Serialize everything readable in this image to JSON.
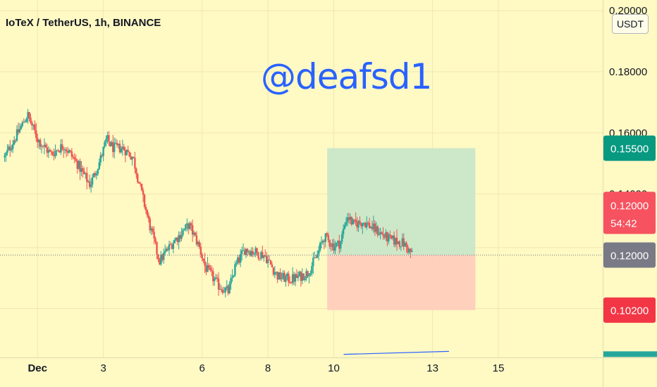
{
  "header": {
    "title": "IoTeX / TetherUS, 1h, BINANCE",
    "watermark": "@deafsd1",
    "unit": "USDT"
  },
  "colors": {
    "background": "#fff9c4",
    "up": "#26a69a",
    "down": "#ef5350",
    "profit_zone": "#c8e6c9",
    "loss_zone": "#ffccbc",
    "target_label": "#089981",
    "stop_label": "#f23645",
    "current_label": "#787b86",
    "timer_label": "#f7525f"
  },
  "chart_data": {
    "type": "candlestick",
    "title": "IoTeX / TetherUS, 1h, BINANCE",
    "y_axis": {
      "ticks": [
        "0.20000",
        "0.18000",
        "0.16000",
        "0.14000"
      ],
      "tick_values": [
        0.2,
        0.18,
        0.16,
        0.14
      ],
      "range": [
        0.0865,
        0.2035
      ]
    },
    "x_axis": {
      "ticks": [
        "Dec",
        "3",
        "6",
        "8",
        "10",
        "13",
        "15"
      ],
      "tick_days": [
        1,
        3,
        6,
        8,
        10,
        13,
        15
      ],
      "range_days": [
        -0.14,
        18.17
      ]
    },
    "grid": true,
    "trade": {
      "entry": 0.12,
      "target": 0.155,
      "stop": 0.102,
      "start_day": 9.8,
      "end_day": 14.3
    },
    "price_labels": [
      {
        "key": "target",
        "text": "0.15500",
        "value": 0.155
      },
      {
        "key": "timer",
        "text": "0.12000",
        "sub": "54:42",
        "value": 0.12
      },
      {
        "key": "current",
        "text": "0.12000",
        "value": 0.12
      },
      {
        "key": "stop",
        "text": "0.10200",
        "value": 0.102
      }
    ],
    "anchors": [
      [
        0.0,
        0.152
      ],
      [
        0.3,
        0.158
      ],
      [
        0.7,
        0.166
      ],
      [
        1.0,
        0.158
      ],
      [
        1.4,
        0.153
      ],
      [
        1.8,
        0.156
      ],
      [
        2.2,
        0.15
      ],
      [
        2.6,
        0.143
      ],
      [
        2.9,
        0.151
      ],
      [
        3.1,
        0.158
      ],
      [
        3.3,
        0.155
      ],
      [
        3.6,
        0.155
      ],
      [
        3.9,
        0.152
      ],
      [
        4.1,
        0.143
      ],
      [
        4.4,
        0.13
      ],
      [
        4.7,
        0.118
      ],
      [
        5.1,
        0.124
      ],
      [
        5.6,
        0.13
      ],
      [
        5.9,
        0.123
      ],
      [
        6.1,
        0.116
      ],
      [
        6.5,
        0.11
      ],
      [
        6.8,
        0.108
      ],
      [
        7.0,
        0.116
      ],
      [
        7.3,
        0.122
      ],
      [
        7.9,
        0.12
      ],
      [
        8.3,
        0.113
      ],
      [
        8.7,
        0.112
      ],
      [
        9.2,
        0.114
      ],
      [
        9.5,
        0.12
      ],
      [
        9.7,
        0.126
      ],
      [
        10.0,
        0.123
      ],
      [
        10.2,
        0.124
      ],
      [
        10.4,
        0.133
      ],
      [
        10.6,
        0.13
      ],
      [
        10.9,
        0.131
      ],
      [
        11.3,
        0.128
      ],
      [
        11.7,
        0.125
      ],
      [
        12.1,
        0.124
      ],
      [
        12.4,
        0.12
      ]
    ],
    "trend_line": {
      "from": [
        10.3,
        0.0875
      ],
      "to": [
        13.5,
        0.0885
      ]
    }
  }
}
